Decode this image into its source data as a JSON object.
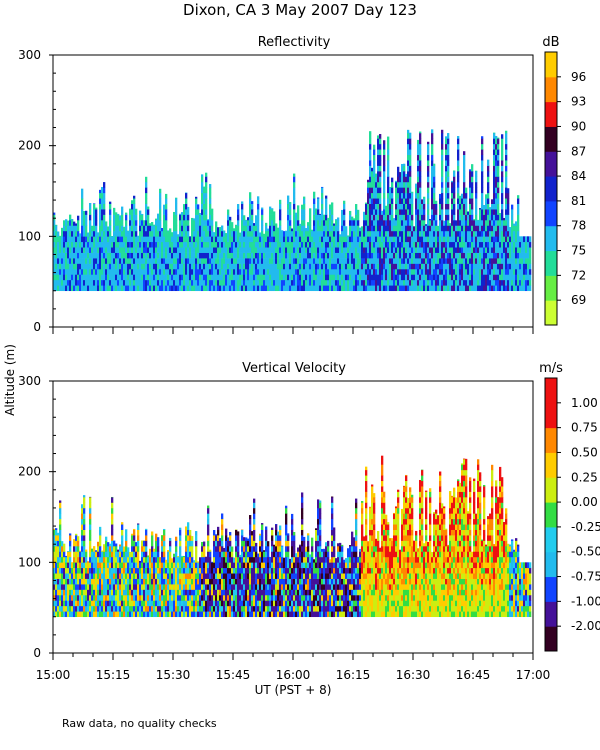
{
  "figure": {
    "title": "Dixon, CA  3 May 2007  Day 123",
    "ylabel": "Altitude (m)",
    "xlabel": "UT  (PST + 8)",
    "footnote": "Raw data, no quality checks"
  },
  "chart_data": [
    {
      "type": "heatmap",
      "title": "Reflectivity",
      "ylim": [
        0,
        300
      ],
      "yticks": [
        0,
        100,
        200,
        300
      ],
      "xlim_hours": [
        15.0,
        17.0
      ],
      "xticks": [
        "15:00",
        "15:15",
        "15:30",
        "15:45",
        "16:00",
        "16:15",
        "16:30",
        "16:45",
        "17:00"
      ],
      "data_range_m": [
        40,
        220
      ],
      "colorbar": {
        "unit": "dB",
        "labels": [
          "69",
          "72",
          "75",
          "78",
          "81",
          "84",
          "87",
          "90",
          "93",
          "96"
        ],
        "colors": [
          "#ccff33",
          "#66ee44",
          "#22dd99",
          "#22bbee",
          "#1144ff",
          "#1122cc",
          "#441199",
          "#330022",
          "#ee1111",
          "#ff8800",
          "#ffcc00"
        ]
      }
    },
    {
      "type": "heatmap",
      "title": "Vertical Velocity",
      "ylim": [
        0,
        300
      ],
      "yticks": [
        0,
        100,
        200,
        300
      ],
      "xlim_hours": [
        15.0,
        17.0
      ],
      "xticks": [
        "15:00",
        "15:15",
        "15:30",
        "15:45",
        "16:00",
        "16:15",
        "16:30",
        "16:45",
        "17:00"
      ],
      "data_range_m": [
        40,
        220
      ],
      "colorbar": {
        "unit": "m/s",
        "labels": [
          "1.00",
          "0.75",
          "0.50",
          "0.25",
          "0.00",
          "-0.25",
          "-0.50",
          "-0.75",
          "-1.00",
          "-2.00"
        ],
        "colors": [
          "#330022",
          "#441199",
          "#1144ff",
          "#22bbee",
          "#22ccee",
          "#33dd44",
          "#ccee11",
          "#ffcc00",
          "#ff8800",
          "#ee1111",
          "#ee1111"
        ]
      }
    }
  ]
}
